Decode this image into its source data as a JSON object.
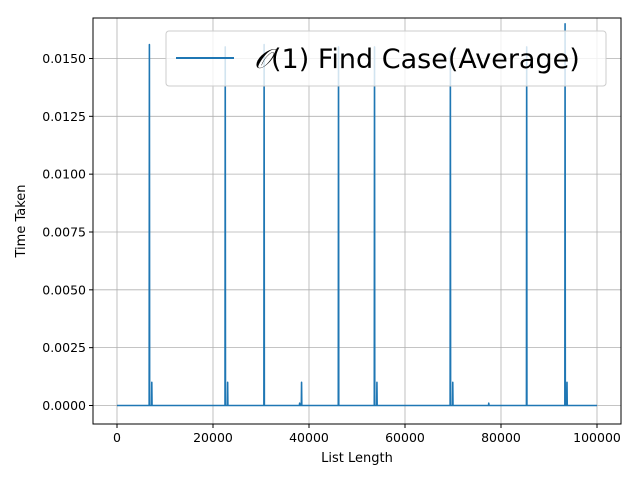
{
  "chart_data": {
    "type": "line",
    "title": "",
    "xlabel": "List Length",
    "ylabel": "Time Taken",
    "xlim": [
      -5000,
      105000
    ],
    "ylim": [
      -0.0008,
      0.01675
    ],
    "xticks": [
      0,
      20000,
      40000,
      60000,
      80000,
      100000
    ],
    "xtick_labels": [
      "0",
      "20000",
      "40000",
      "60000",
      "80000",
      "100000"
    ],
    "yticks": [
      0.0,
      0.0025,
      0.005,
      0.0075,
      0.01,
      0.0125,
      0.015
    ],
    "ytick_labels": [
      "0.0000",
      "0.0025",
      "0.0050",
      "0.0075",
      "0.0100",
      "0.0125",
      "0.0150"
    ],
    "grid": true,
    "legend_position": "top-right",
    "series": [
      {
        "name": "𝒪(1) Find Case(Average)",
        "color": "#1f77b4",
        "x": [
          0,
          6700,
          6750,
          6800,
          7200,
          7250,
          7300,
          22500,
          22550,
          22600,
          23000,
          23050,
          23100,
          30600,
          30650,
          30700,
          38000,
          38050,
          38100,
          38400,
          38450,
          38500,
          46100,
          46150,
          46200,
          53600,
          53650,
          53700,
          54100,
          54150,
          54200,
          69400,
          69450,
          69500,
          69900,
          69950,
          70000,
          77400,
          77450,
          77500,
          85300,
          85350,
          85400,
          93300,
          93350,
          93400,
          93700,
          93750,
          93800,
          100000
        ],
        "y": [
          0,
          0,
          0.0156,
          0,
          0,
          0.001,
          0,
          0,
          0.0155,
          0,
          0,
          0.001,
          0,
          0,
          0.0156,
          0,
          0,
          0.0001,
          0,
          0,
          0.001,
          0,
          0,
          0.0155,
          0,
          0,
          0.0155,
          0,
          0,
          0.001,
          0,
          0,
          0.0153,
          0,
          0,
          0.001,
          0,
          0,
          0.0001,
          0,
          0,
          0.0155,
          0,
          0,
          0.0165,
          0,
          0,
          0.001,
          0,
          0
        ]
      }
    ]
  }
}
